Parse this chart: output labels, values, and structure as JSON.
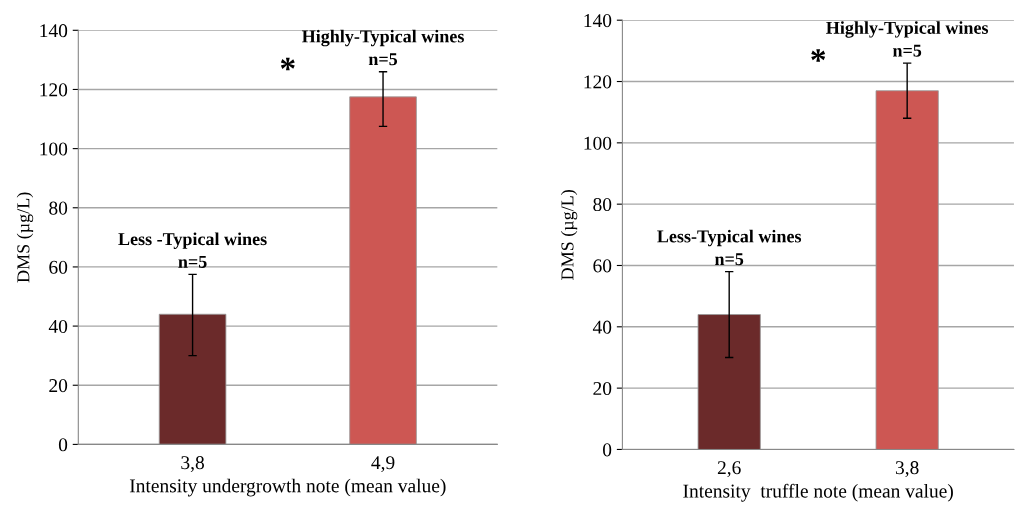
{
  "chart_data": [
    {
      "type": "bar",
      "categories": [
        "3,8",
        "4,9"
      ],
      "values": [
        44,
        117.5
      ],
      "colors": [
        "#6b2a2a",
        "#cd5753"
      ],
      "errors": [
        [
          30,
          57.5
        ],
        [
          107.5,
          126
        ]
      ],
      "ylim": [
        0,
        140
      ],
      "yticks": [
        0,
        20,
        40,
        60,
        80,
        100,
        120,
        140
      ],
      "grid": "y",
      "xlabel": "Intensity undergrowth note (mean value)",
      "ylabel": "DMS (µg/L)",
      "annotations": [
        "Less -Typical wines\nn=5",
        "Highly-Typical wines\nn=5",
        "*"
      ]
    },
    {
      "type": "bar",
      "categories": [
        "2,6",
        "3,8"
      ],
      "values": [
        44,
        117
      ],
      "colors": [
        "#6b2a2a",
        "#cd5753"
      ],
      "errors": [
        [
          30,
          58
        ],
        [
          108,
          126
        ]
      ],
      "ylim": [
        0,
        140
      ],
      "yticks": [
        0,
        20,
        40,
        60,
        80,
        100,
        120,
        140
      ],
      "grid": "y",
      "xlabel": "Intensity  truffle note (mean value)",
      "ylabel": "DMS (µg/L)",
      "annotations": [
        "Less-Typical wines\nn=5",
        "Highly-Typical wines\nn=5",
        "*"
      ]
    }
  ]
}
